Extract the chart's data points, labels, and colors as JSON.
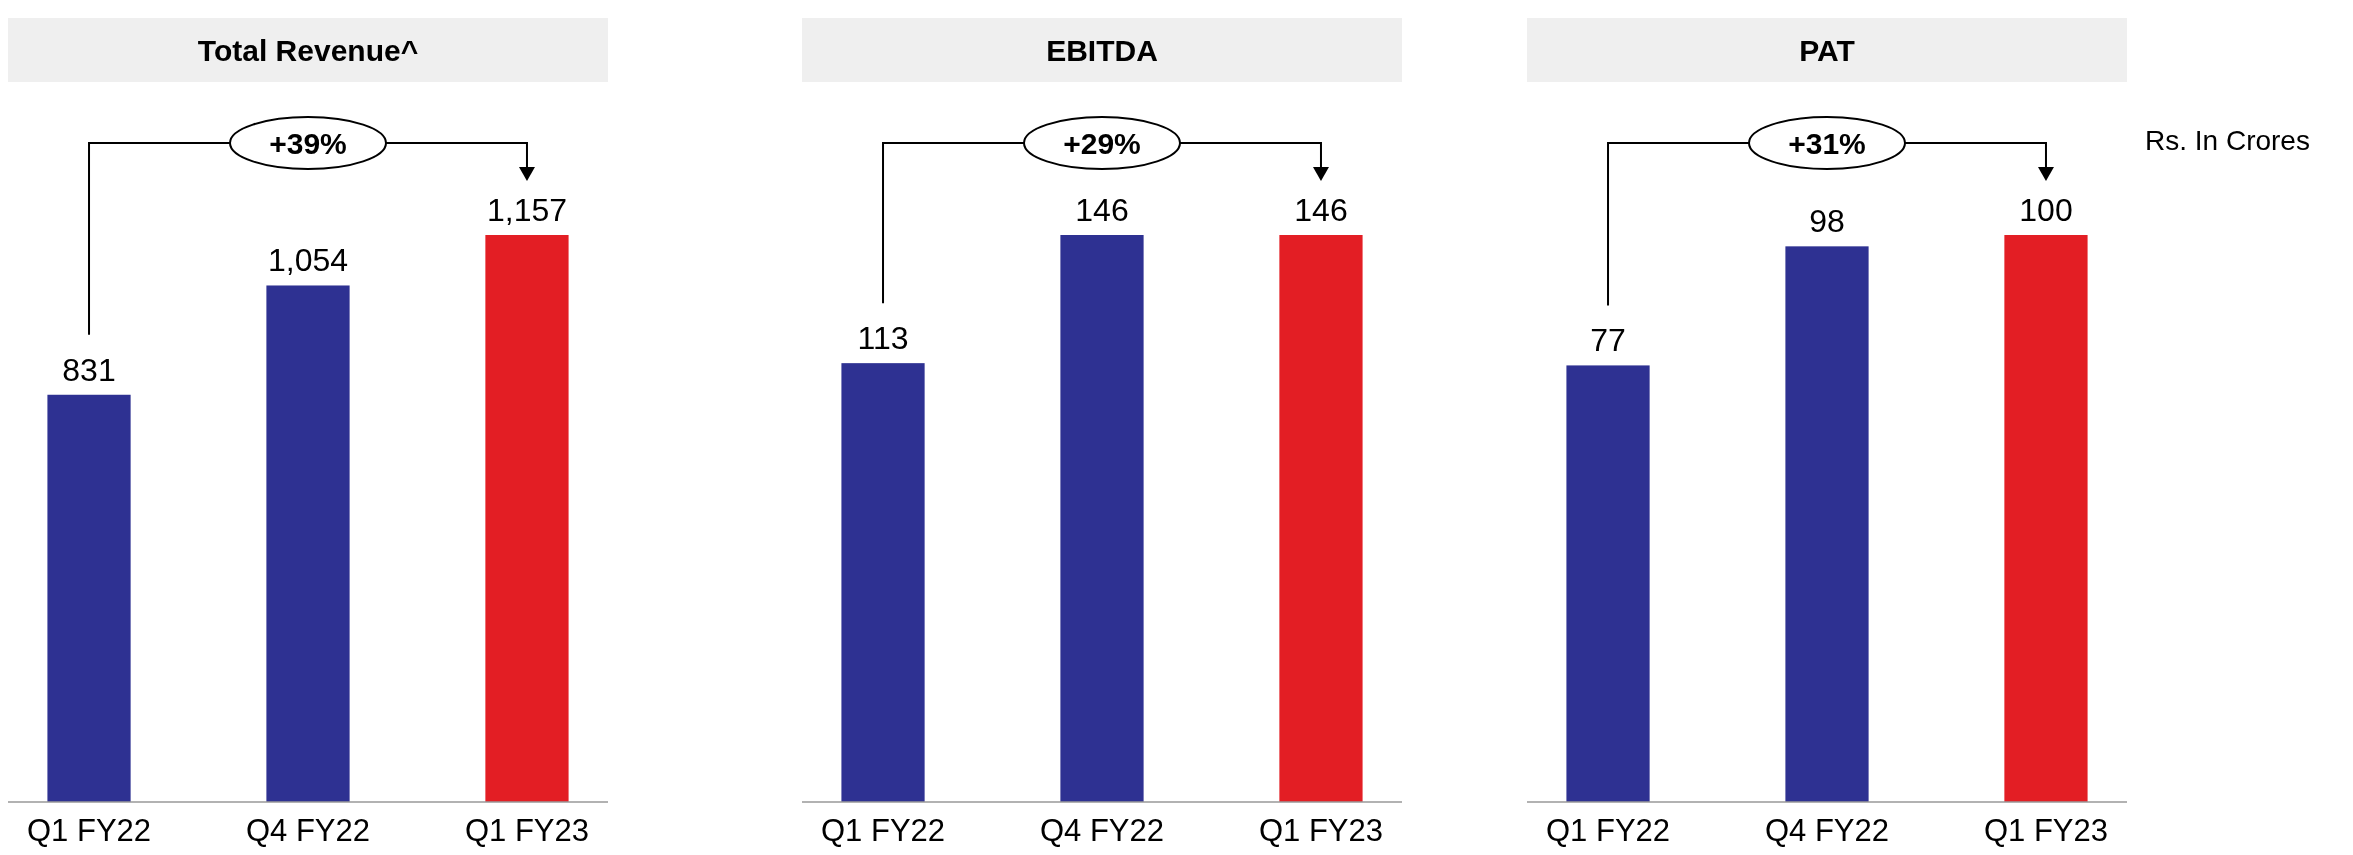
{
  "chart_data": [
    {
      "type": "bar",
      "title": "Total Revenue^",
      "categories": [
        "Q1 FY22",
        "Q4 FY22",
        "Q1 FY23"
      ],
      "values": [
        831,
        1054,
        1157
      ],
      "value_labels": [
        "831",
        "1,054",
        "1,157"
      ],
      "colors": [
        "#2e3192",
        "#2e3192",
        "#e31e24"
      ],
      "annotations": [
        "+39%"
      ]
    },
    {
      "type": "bar",
      "title": "EBITDA",
      "categories": [
        "Q1 FY22",
        "Q4 FY22",
        "Q1 FY23"
      ],
      "values": [
        113,
        146,
        146
      ],
      "colors": [
        "#2e3192",
        "#2e3192",
        "#e31e24"
      ],
      "data_labels": true,
      "annotations": [
        "+29%"
      ]
    },
    {
      "type": "bar",
      "title": "PAT",
      "categories": [
        "Q1 FY22",
        "Q4 FY22",
        "Q1 FY23"
      ],
      "values": [
        77,
        98,
        100
      ],
      "colors": [
        "#2e3192",
        "#2e3192",
        "#e31e24"
      ],
      "data_labels": true,
      "annotations": [
        "+31%",
        "Rs. In Crores"
      ]
    }
  ]
}
